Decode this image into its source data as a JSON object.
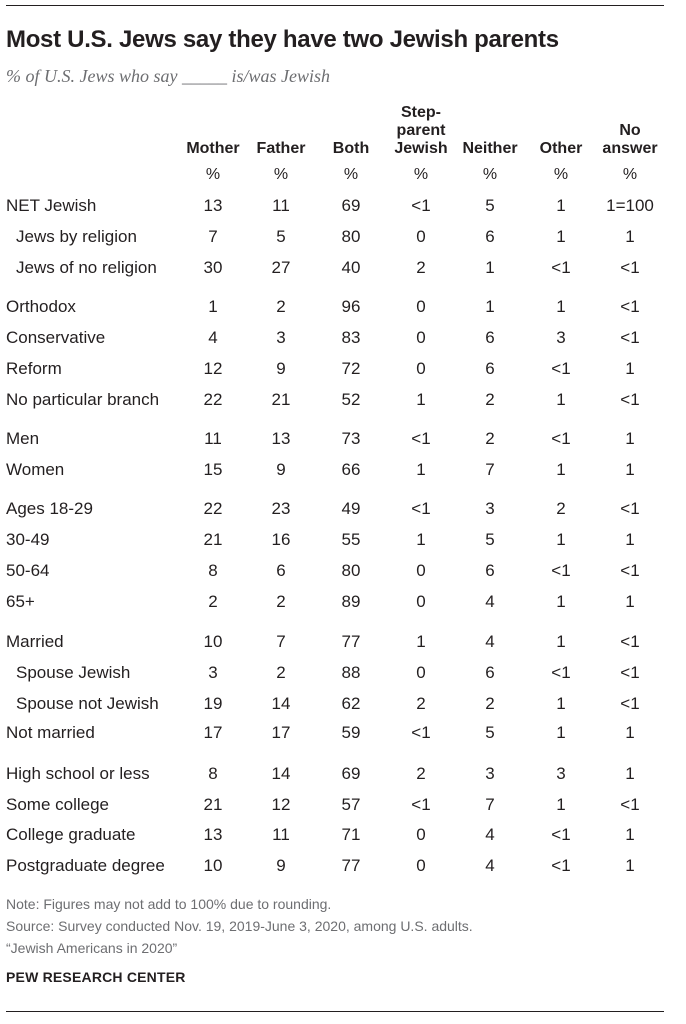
{
  "title": "Most U.S. Jews say they have two Jewish parents",
  "subtitle": "% of U.S. Jews who say _____ is/was Jewish",
  "chart_data": {
    "type": "table",
    "columns": [
      {
        "lines": [
          "Mother"
        ]
      },
      {
        "lines": [
          "Father"
        ]
      },
      {
        "lines": [
          "Both"
        ]
      },
      {
        "lines": [
          "Step-",
          "parent",
          "Jewish"
        ]
      },
      {
        "lines": [
          "Neither"
        ]
      },
      {
        "lines": [
          "Other"
        ]
      },
      {
        "lines": [
          "No",
          "answer"
        ]
      }
    ],
    "unit": "%",
    "rows": [
      {
        "label": "NET Jewish",
        "indent": false,
        "values": [
          "13",
          "11",
          "69",
          "<1",
          "5",
          "1",
          "1=100"
        ]
      },
      {
        "label": "Jews by religion",
        "indent": true,
        "values": [
          "7",
          "5",
          "80",
          "0",
          "6",
          "1",
          "1"
        ]
      },
      {
        "label": "Jews of no religion",
        "indent": true,
        "values": [
          "30",
          "27",
          "40",
          "2",
          "1",
          "<1",
          "<1"
        ]
      },
      {
        "label": "Orthodox",
        "indent": false,
        "values": [
          "1",
          "2",
          "96",
          "0",
          "1",
          "1",
          "<1"
        ]
      },
      {
        "label": "Conservative",
        "indent": false,
        "values": [
          "4",
          "3",
          "83",
          "0",
          "6",
          "3",
          "<1"
        ]
      },
      {
        "label": "Reform",
        "indent": false,
        "values": [
          "12",
          "9",
          "72",
          "0",
          "6",
          "<1",
          "1"
        ]
      },
      {
        "label": "No particular branch",
        "indent": false,
        "values": [
          "22",
          "21",
          "52",
          "1",
          "2",
          "1",
          "<1"
        ]
      },
      {
        "label": "Men",
        "indent": false,
        "values": [
          "11",
          "13",
          "73",
          "<1",
          "2",
          "<1",
          "1"
        ]
      },
      {
        "label": "Women",
        "indent": false,
        "values": [
          "15",
          "9",
          "66",
          "1",
          "7",
          "1",
          "1"
        ]
      },
      {
        "label": "Ages 18-29",
        "indent": false,
        "values": [
          "22",
          "23",
          "49",
          "<1",
          "3",
          "2",
          "<1"
        ]
      },
      {
        "label": "30-49",
        "indent": false,
        "values": [
          "21",
          "16",
          "55",
          "1",
          "5",
          "1",
          "1"
        ]
      },
      {
        "label": "50-64",
        "indent": false,
        "values": [
          "8",
          "6",
          "80",
          "0",
          "6",
          "<1",
          "<1"
        ]
      },
      {
        "label": "65+",
        "indent": false,
        "values": [
          "2",
          "2",
          "89",
          "0",
          "4",
          "1",
          "1"
        ]
      },
      {
        "label": "Married",
        "indent": false,
        "values": [
          "10",
          "7",
          "77",
          "1",
          "4",
          "1",
          "<1"
        ]
      },
      {
        "label": "Spouse Jewish",
        "indent": true,
        "values": [
          "3",
          "2",
          "88",
          "0",
          "6",
          "<1",
          "<1"
        ]
      },
      {
        "label": "Spouse not Jewish",
        "indent": true,
        "values": [
          "19",
          "14",
          "62",
          "2",
          "2",
          "1",
          "<1"
        ]
      },
      {
        "label": "Not married",
        "indent": false,
        "values": [
          "17",
          "17",
          "59",
          "<1",
          "5",
          "1",
          "1"
        ]
      },
      {
        "label": "High school or less",
        "indent": false,
        "values": [
          "8",
          "14",
          "69",
          "2",
          "3",
          "3",
          "1"
        ]
      },
      {
        "label": "Some college",
        "indent": false,
        "values": [
          "21",
          "12",
          "57",
          "<1",
          "7",
          "1",
          "<1"
        ]
      },
      {
        "label": "College graduate",
        "indent": false,
        "values": [
          "13",
          "11",
          "71",
          "0",
          "4",
          "<1",
          "1"
        ]
      },
      {
        "label": "Postgraduate degree",
        "indent": false,
        "values": [
          "10",
          "9",
          "77",
          "0",
          "4",
          "<1",
          "1"
        ]
      }
    ]
  },
  "notes": [
    "Note: Figures may not add to 100% due to rounding.",
    "Source: Survey conducted Nov. 19, 2019-June 3, 2020, among U.S. adults.",
    "“Jewish Americans in 2020”"
  ],
  "source_brand": "PEW RESEARCH CENTER"
}
